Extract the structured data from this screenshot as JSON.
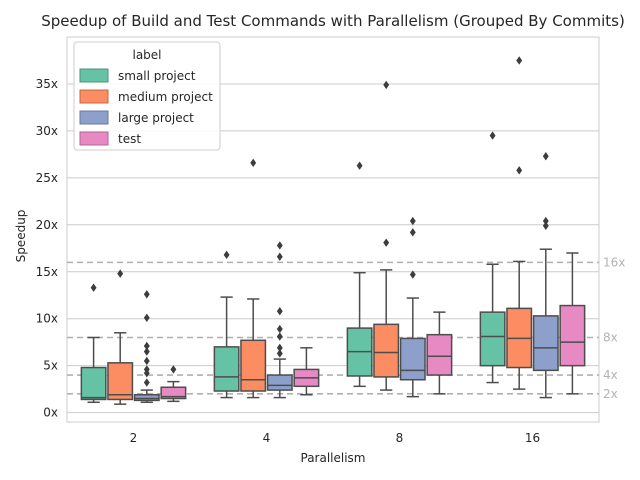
{
  "chart_data": {
    "type": "box",
    "title": "Speedup of Build and Test Commands with Parallelism (Grouped By Commits)",
    "xlabel": "Parallelism",
    "ylabel": "Speedup",
    "ylim": [
      -1,
      40
    ],
    "yticks": [
      0,
      5,
      10,
      15,
      20,
      25,
      30,
      35
    ],
    "ytick_suffix": "x",
    "grid": true,
    "categories": [
      "2",
      "4",
      "8",
      "16"
    ],
    "legend": {
      "title": "label",
      "position": "top-left"
    },
    "reference_lines": [
      {
        "value": 16,
        "label": "16x"
      },
      {
        "value": 8,
        "label": "8x"
      },
      {
        "value": 4,
        "label": "4x"
      },
      {
        "value": 2,
        "label": "2x"
      }
    ],
    "series": [
      {
        "name": "small project",
        "color": "#66c2a5",
        "boxes": [
          {
            "whislo": 1.1,
            "q1": 1.4,
            "med": 1.6,
            "q3": 4.8,
            "whishi": 8.0,
            "fliers": [
              13.3
            ]
          },
          {
            "whislo": 1.6,
            "q1": 2.3,
            "med": 3.8,
            "q3": 7.0,
            "whishi": 12.3,
            "fliers": [
              16.8
            ]
          },
          {
            "whislo": 2.8,
            "q1": 3.9,
            "med": 6.5,
            "q3": 9.0,
            "whishi": 14.9,
            "fliers": [
              26.3
            ]
          },
          {
            "whislo": 3.2,
            "q1": 5.0,
            "med": 8.1,
            "q3": 10.7,
            "whishi": 15.8,
            "fliers": [
              29.5
            ]
          }
        ]
      },
      {
        "name": "medium project",
        "color": "#fc8d62",
        "boxes": [
          {
            "whislo": 0.9,
            "q1": 1.4,
            "med": 1.9,
            "q3": 5.3,
            "whishi": 8.5,
            "fliers": [
              14.8
            ]
          },
          {
            "whislo": 1.6,
            "q1": 2.3,
            "med": 3.5,
            "q3": 7.7,
            "whishi": 12.1,
            "fliers": [
              26.6
            ]
          },
          {
            "whislo": 2.4,
            "q1": 3.8,
            "med": 6.4,
            "q3": 9.4,
            "whishi": 15.2,
            "fliers": [
              18.1,
              34.9
            ]
          },
          {
            "whislo": 2.5,
            "q1": 4.8,
            "med": 7.9,
            "q3": 11.1,
            "whishi": 16.1,
            "fliers": [
              25.8,
              37.5
            ]
          }
        ]
      },
      {
        "name": "large project",
        "color": "#8da0cb",
        "boxes": [
          {
            "whislo": 1.1,
            "q1": 1.3,
            "med": 1.5,
            "q3": 1.9,
            "whishi": 2.4,
            "fliers": [
              3.2,
              4.2,
              4.6,
              5.5,
              6.5,
              7.1,
              10.1,
              12.6
            ]
          },
          {
            "whislo": 1.6,
            "q1": 2.4,
            "med": 2.9,
            "q3": 4.0,
            "whishi": 5.7,
            "fliers": [
              6.3,
              6.9,
              8.1,
              8.9,
              10.8,
              16.6,
              17.8
            ]
          },
          {
            "whislo": 1.7,
            "q1": 3.5,
            "med": 4.5,
            "q3": 7.9,
            "whishi": 12.2,
            "fliers": [
              14.7,
              19.2,
              20.4
            ]
          },
          {
            "whislo": 1.6,
            "q1": 4.5,
            "med": 6.9,
            "q3": 10.3,
            "whishi": 17.4,
            "fliers": [
              19.9,
              20.4,
              27.3
            ]
          }
        ]
      },
      {
        "name": "test",
        "color": "#e78ac3",
        "boxes": [
          {
            "whislo": 1.2,
            "q1": 1.5,
            "med": 1.7,
            "q3": 2.7,
            "whishi": 3.3,
            "fliers": [
              4.6
            ]
          },
          {
            "whislo": 1.9,
            "q1": 2.8,
            "med": 3.7,
            "q3": 4.6,
            "whishi": 6.9,
            "fliers": []
          },
          {
            "whislo": 2.0,
            "q1": 4.0,
            "med": 6.0,
            "q3": 8.3,
            "whishi": 10.7,
            "fliers": []
          },
          {
            "whislo": 2.0,
            "q1": 5.0,
            "med": 7.5,
            "q3": 11.4,
            "whishi": 17.0,
            "fliers": []
          }
        ]
      }
    ]
  }
}
